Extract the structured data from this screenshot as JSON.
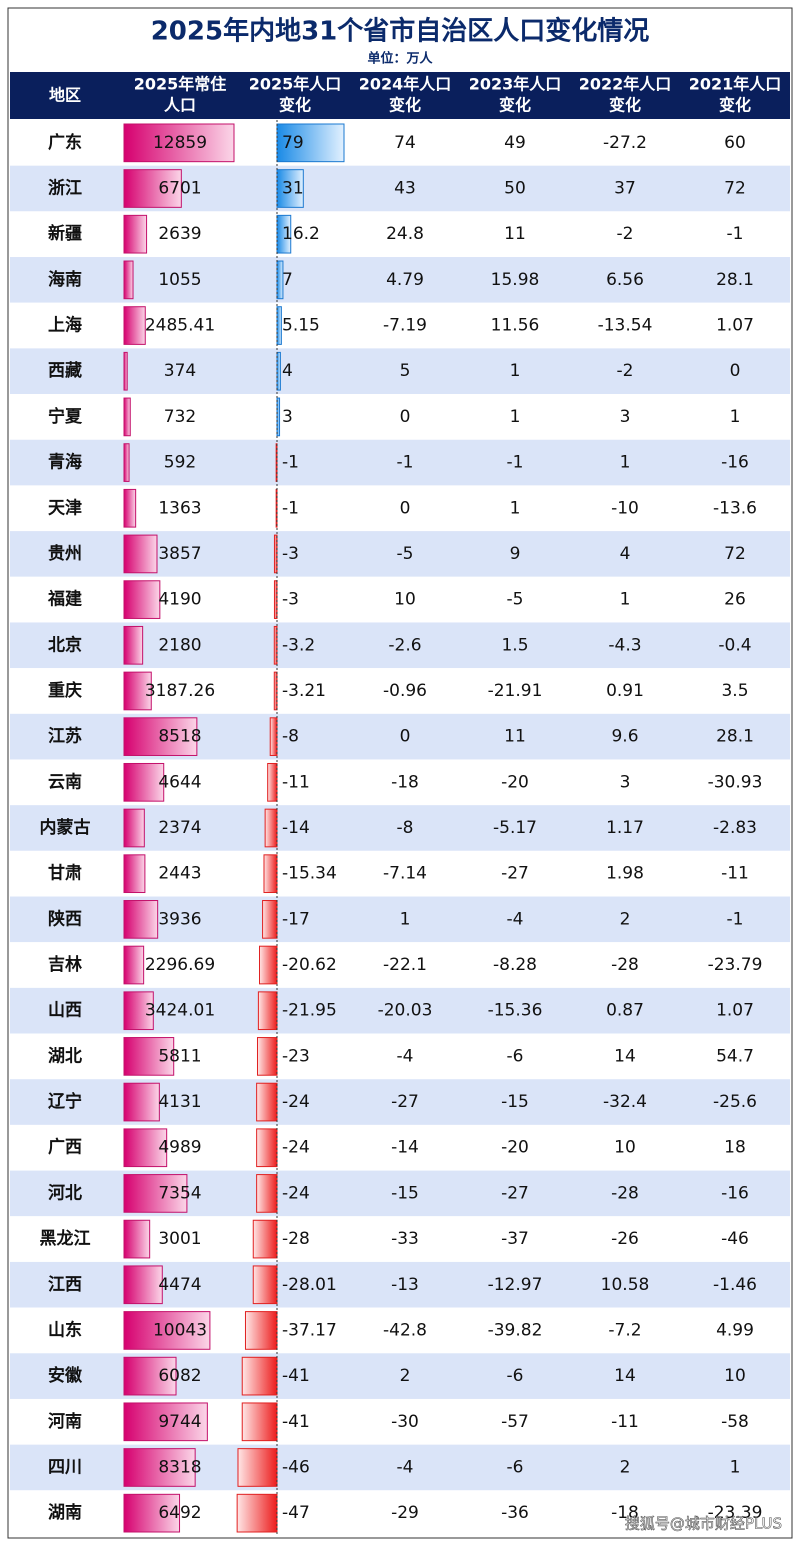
{
  "header": {
    "title": "2025年内地31个省市自治区人口变化情况",
    "unit": "单位：万人"
  },
  "table": {
    "columns": [
      [
        "地区"
      ],
      [
        "2025年常住",
        "人口"
      ],
      [
        "2025年人口",
        "变化"
      ],
      [
        "2024年人口",
        "变化"
      ],
      [
        "2023年人口",
        "变化"
      ],
      [
        "2022年人口",
        "变化"
      ],
      [
        "2021年人口",
        "变化"
      ]
    ],
    "rows": [
      [
        "广东",
        12859,
        79,
        74,
        49,
        -27.2,
        60
      ],
      [
        "浙江",
        6701,
        31,
        43,
        50,
        37,
        72
      ],
      [
        "新疆",
        2639,
        16.2,
        24.8,
        11,
        -2,
        -1
      ],
      [
        "海南",
        1055,
        7,
        4.79,
        15.98,
        6.56,
        28.1
      ],
      [
        "上海",
        2485.41,
        5.15,
        -7.19,
        11.56,
        -13.54,
        1.07
      ],
      [
        "西藏",
        374,
        4,
        5,
        1,
        -2,
        0
      ],
      [
        "宁夏",
        732,
        3,
        0,
        1,
        3,
        1
      ],
      [
        "青海",
        592,
        -1,
        -1,
        -1,
        1,
        -16
      ],
      [
        "天津",
        1363,
        -1,
        0,
        1,
        -10,
        -13.6
      ],
      [
        "贵州",
        3857,
        -3,
        -5,
        9,
        4,
        72
      ],
      [
        "福建",
        4190,
        -3,
        10,
        -5,
        1,
        26
      ],
      [
        "北京",
        2180,
        -3.2,
        -2.6,
        1.5,
        -4.3,
        -0.4
      ],
      [
        "重庆",
        3187.26,
        -3.21,
        -0.96,
        -21.91,
        0.91,
        3.5
      ],
      [
        "江苏",
        8518,
        -8,
        0,
        11,
        9.6,
        28.1
      ],
      [
        "云南",
        4644,
        -11,
        -18,
        -20,
        3,
        -30.93
      ],
      [
        "内蒙古",
        2374,
        -14,
        -8,
        -5.17,
        1.17,
        -2.83
      ],
      [
        "甘肃",
        2443,
        -15.34,
        -7.14,
        -27,
        1.98,
        -11
      ],
      [
        "陕西",
        3936,
        -17,
        1,
        -4,
        2,
        -1
      ],
      [
        "吉林",
        2296.69,
        -20.62,
        -22.1,
        -8.28,
        -28,
        -23.79
      ],
      [
        "山西",
        3424.01,
        -21.95,
        -20.03,
        -15.36,
        0.87,
        1.07
      ],
      [
        "湖北",
        5811,
        -23,
        -4,
        -6,
        14,
        54.7
      ],
      [
        "辽宁",
        4131,
        -24,
        -27,
        -15,
        -32.4,
        -25.6
      ],
      [
        "广西",
        4989,
        -24,
        -14,
        -20,
        10,
        18
      ],
      [
        "河北",
        7354,
        -24,
        -15,
        -27,
        -28,
        -16
      ],
      [
        "黑龙江",
        3001,
        -28,
        -33,
        -37,
        -26,
        -46
      ],
      [
        "江西",
        4474,
        -28.01,
        -13,
        -12.97,
        10.58,
        -1.46
      ],
      [
        "山东",
        10043,
        -37.17,
        -42.8,
        -39.82,
        -7.2,
        4.99
      ],
      [
        "安徽",
        6082,
        -41,
        2,
        -6,
        14,
        10
      ],
      [
        "河南",
        9744,
        -41,
        -30,
        -57,
        -11,
        -58
      ],
      [
        "四川",
        8318,
        -46,
        -4,
        -6,
        2,
        1
      ],
      [
        "湖南",
        6492,
        -47,
        -29,
        -36,
        -18,
        -23.39
      ]
    ]
  },
  "watermark": "搜狐号@城市财经PLUS"
}
